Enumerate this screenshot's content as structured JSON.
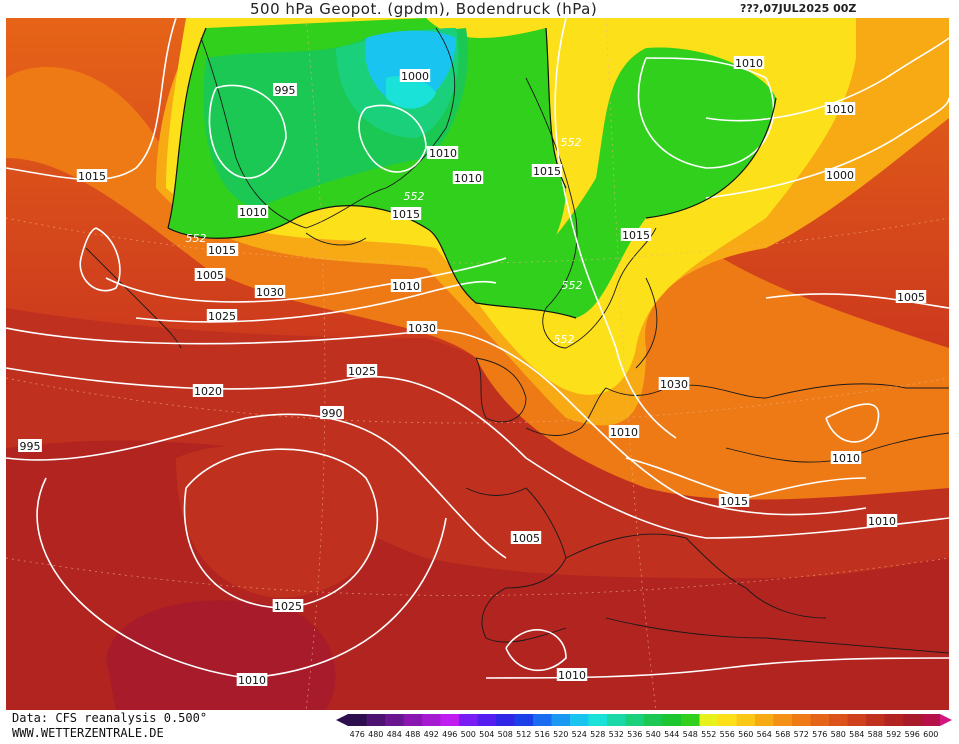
{
  "header": {
    "title": "500 hPa Geopot. (gpdm), Bodendruck (hPa)",
    "date": "???,07JUL2025 00Z"
  },
  "footer": {
    "data_source": "Data: CFS reanalysis 0.500°",
    "website": "WWW.WETTERZENTRALE.DE"
  },
  "legend": {
    "units": "gpdm",
    "levels": [
      "476",
      "480",
      "484",
      "488",
      "492",
      "496",
      "500",
      "504",
      "508",
      "512",
      "516",
      "520",
      "524",
      "528",
      "532",
      "536",
      "540",
      "544",
      "548",
      "552",
      "556",
      "560",
      "564",
      "568",
      "572",
      "576",
      "580",
      "584",
      "588",
      "592",
      "596",
      "600"
    ],
    "colors": [
      "#2d0f4d",
      "#4c1370",
      "#6a1690",
      "#8a18b0",
      "#a51ad0",
      "#c01df0",
      "#7a1df5",
      "#551df0",
      "#3126e5",
      "#1c40e8",
      "#1a6cf0",
      "#1a98f2",
      "#1ac4f0",
      "#1ae2d8",
      "#1ad8a8",
      "#1ad07a",
      "#1ac853",
      "#1dc62e",
      "#30d01d",
      "#e8f21a",
      "#fce01a",
      "#fcc818",
      "#f8aa15",
      "#f49016",
      "#ee7a16",
      "#e66418",
      "#dc521c",
      "#cf401d",
      "#c0301f",
      "#b22420",
      "#a81b2a",
      "#b6124a"
    ]
  },
  "isobar_labels": [
    "1015",
    "995",
    "1000",
    "1005",
    "1010",
    "1015",
    "1020",
    "1025",
    "1030",
    "1025",
    "1030",
    "1025",
    "1020",
    "990",
    "995",
    "1000",
    "1005",
    "1010",
    "1015",
    "1005",
    "1010",
    "1000",
    "1010",
    "1015",
    "1015",
    "1000",
    "1005",
    "1010",
    "1010",
    "1010",
    "1010",
    "1015",
    "1010",
    "1005",
    "1010",
    "1030",
    "1025",
    "1010"
  ],
  "contour_labels": [
    "552",
    "552",
    "552",
    "552",
    "552"
  ]
}
